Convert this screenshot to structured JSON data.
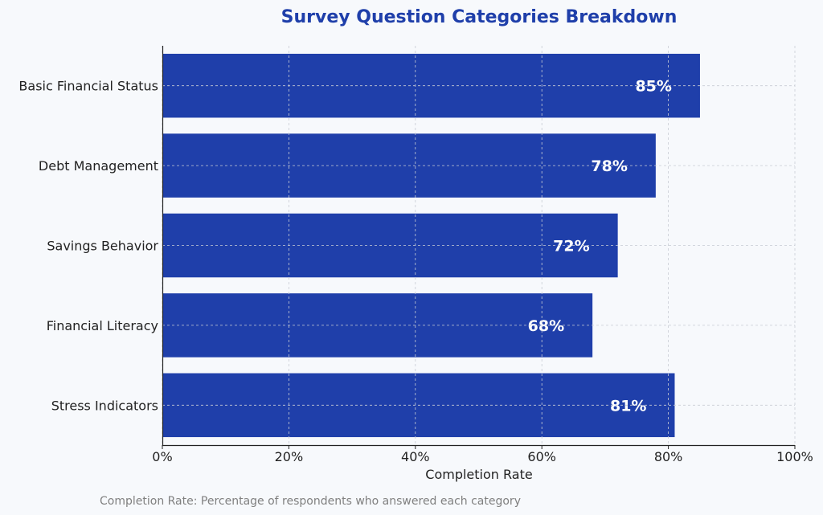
{
  "chart_data": {
    "type": "bar",
    "orientation": "horizontal",
    "title": "Survey Question Categories Breakdown",
    "xlabel": "Completion Rate",
    "ylabel": "",
    "categories": [
      "Basic Financial Status",
      "Debt Management",
      "Savings Behavior",
      "Financial Literacy",
      "Stress Indicators"
    ],
    "values": [
      85,
      78,
      72,
      68,
      81
    ],
    "value_labels": [
      "85%",
      "78%",
      "72%",
      "68%",
      "81%"
    ],
    "xlim": [
      0,
      100
    ],
    "x_ticks": [
      0,
      20,
      40,
      60,
      80,
      100
    ],
    "x_tick_labels": [
      "0%",
      "20%",
      "40%",
      "60%",
      "80%",
      "100%"
    ],
    "grid": true,
    "footnote": "Completion Rate: Percentage of respondents who answered each category",
    "colors": {
      "bar": "#1f3faa",
      "title": "#1f3faa",
      "grid": "#c8ccd4",
      "background": "#f7f9fc"
    }
  }
}
